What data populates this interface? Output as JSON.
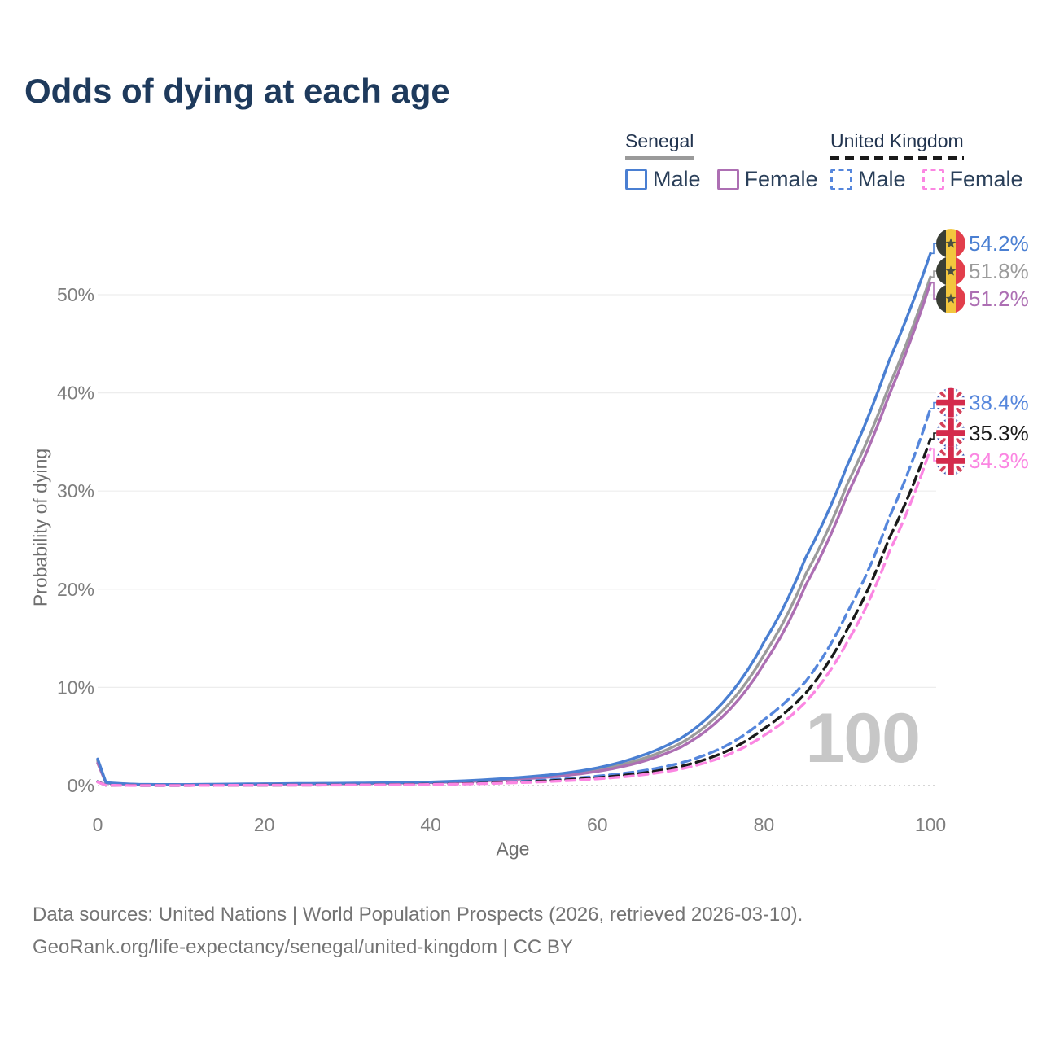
{
  "legend": {
    "groups": [
      {
        "id": "senegal",
        "label": "Senegal",
        "line_style": "solid",
        "underline_color": "#9a9a9a",
        "items": [
          {
            "label": "Male",
            "color": "#4a7fd2",
            "box_style": "solid"
          },
          {
            "label": "Female",
            "color": "#ad6fb3",
            "box_style": "solid"
          }
        ]
      },
      {
        "id": "united-kingdom",
        "label": "United Kingdom",
        "line_style": "dashed",
        "underline_color": "#1a1a1a",
        "items": [
          {
            "label": "Male",
            "color": "#5586dc",
            "box_style": "dashed"
          },
          {
            "label": "Female",
            "color": "#fb86e2",
            "box_style": "dashed"
          }
        ]
      }
    ]
  },
  "footer": {
    "line1": "Data sources: United Nations | World Population Prospects (2026, retrieved 2026-03-10).",
    "line2": "GeoRank.org/life-expectancy/senegal/united-kingdom | CC BY"
  },
  "chart_data": {
    "type": "line",
    "title": "Odds of dying at each age",
    "xlabel": "Age",
    "ylabel": "Probability of dying",
    "xlim": [
      0,
      100
    ],
    "ylim": [
      0,
      56
    ],
    "x_ticks": [
      0,
      20,
      40,
      60,
      80,
      100
    ],
    "y_ticks": [
      0,
      10,
      20,
      30,
      40,
      50
    ],
    "y_tick_suffix": "%",
    "grid": "horizontal",
    "legend_position": "top-right",
    "hover_age_label": "100",
    "colors": {
      "grid": "#ededed",
      "baseline": "#c9c9c9",
      "tick_text": "#7e7e7e",
      "title_text": "#1e3a5c",
      "watermark": "#c7c7c7"
    },
    "ages": [
      0,
      1,
      5,
      10,
      15,
      20,
      25,
      30,
      35,
      40,
      45,
      50,
      55,
      60,
      65,
      70,
      75,
      80,
      85,
      90,
      95,
      100
    ],
    "series": [
      {
        "name": "Senegal Male",
        "country": "Senegal",
        "sex": "Male",
        "style": "solid",
        "color": "#4a7fd2",
        "label_color": "#4a7fd2",
        "flag": "senegal",
        "end_label": "54.2%",
        "values": [
          2.7,
          0.3,
          0.12,
          0.1,
          0.14,
          0.18,
          0.21,
          0.24,
          0.28,
          0.36,
          0.52,
          0.78,
          1.15,
          1.8,
          2.95,
          4.8,
          8.4,
          14.6,
          23.2,
          32.6,
          43.2,
          54.2
        ]
      },
      {
        "name": "Senegal",
        "country": "Senegal",
        "sex": "Both sexes",
        "style": "solid",
        "color": "#9b9b9b",
        "label_color": "#9b9b9b",
        "flag": "senegal",
        "end_label": "51.8%",
        "values": [
          2.5,
          0.28,
          0.11,
          0.09,
          0.12,
          0.16,
          0.19,
          0.22,
          0.26,
          0.33,
          0.47,
          0.7,
          1.02,
          1.6,
          2.62,
          4.3,
          7.6,
          13.3,
          21.5,
          30.7,
          40.6,
          51.8
        ]
      },
      {
        "name": "Senegal Female",
        "country": "Senegal",
        "sex": "Female",
        "style": "solid",
        "color": "#ad6fb3",
        "label_color": "#ad6fb3",
        "flag": "senegal",
        "end_label": "51.2%",
        "values": [
          2.3,
          0.26,
          0.1,
          0.08,
          0.11,
          0.14,
          0.17,
          0.2,
          0.24,
          0.3,
          0.43,
          0.63,
          0.92,
          1.44,
          2.35,
          3.9,
          7.0,
          12.4,
          20.4,
          29.6,
          39.7,
          51.2
        ]
      },
      {
        "name": "United Kingdom Male",
        "country": "United Kingdom",
        "sex": "Male",
        "style": "dashed",
        "color": "#5586dc",
        "label_color": "#5586dc",
        "flag": "uk",
        "end_label": "38.4%",
        "values": [
          0.4,
          0.03,
          0.01,
          0.012,
          0.028,
          0.05,
          0.062,
          0.08,
          0.11,
          0.16,
          0.25,
          0.4,
          0.62,
          0.95,
          1.45,
          2.3,
          3.85,
          6.7,
          10.6,
          17.6,
          27.2,
          38.4
        ]
      },
      {
        "name": "United Kingdom",
        "country": "United Kingdom",
        "sex": "Both sexes",
        "style": "dashed",
        "color": "#1a1a1a",
        "label_color": "#1a1a1a",
        "flag": "uk",
        "end_label": "35.3%",
        "values": [
          0.38,
          0.028,
          0.009,
          0.01,
          0.022,
          0.04,
          0.05,
          0.065,
          0.09,
          0.135,
          0.21,
          0.33,
          0.52,
          0.8,
          1.22,
          1.95,
          3.3,
          5.8,
          9.4,
          15.9,
          25.1,
          35.3
        ]
      },
      {
        "name": "United Kingdom Female",
        "country": "United Kingdom",
        "sex": "Female",
        "style": "dashed",
        "color": "#fb86e2",
        "label_color": "#fb86e2",
        "flag": "uk",
        "end_label": "34.3%",
        "values": [
          0.35,
          0.025,
          0.008,
          0.009,
          0.018,
          0.032,
          0.042,
          0.055,
          0.075,
          0.11,
          0.175,
          0.28,
          0.44,
          0.68,
          1.05,
          1.68,
          2.9,
          5.1,
          8.5,
          14.6,
          23.7,
          34.3
        ]
      }
    ]
  }
}
